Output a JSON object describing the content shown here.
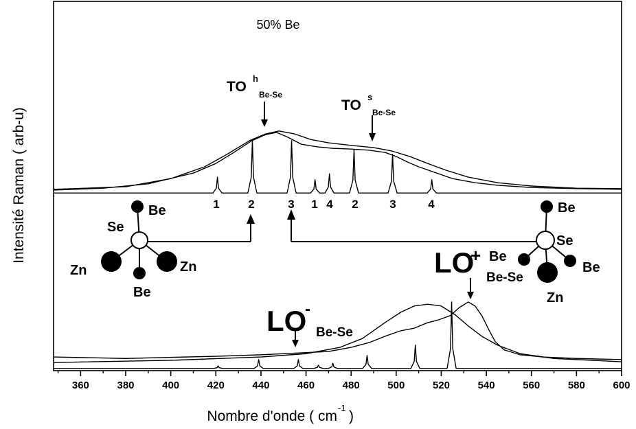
{
  "chart_data": {
    "type": "line",
    "title": "50% Be",
    "x_label": {
      "text": "Nombre d'onde ( cm",
      "sup": "-1",
      "close": ")"
    },
    "y_label": "Intensité Raman ( arb-u)",
    "xlim": [
      348,
      600
    ],
    "xticks": [
      360,
      380,
      400,
      420,
      440,
      460,
      480,
      500,
      520,
      540,
      560,
      580,
      600
    ],
    "xminor_ticks": [
      350,
      370,
      390,
      410,
      430,
      450,
      470,
      490,
      510,
      530,
      550,
      570,
      590
    ],
    "ylim": [
      0,
      100
    ],
    "series": [
      {
        "color": "#000000",
        "x": [
          348,
          370,
          390,
          410,
          420,
          428,
          436,
          442,
          447,
          452,
          458,
          465,
          472,
          480,
          488,
          495,
          500,
          505,
          510,
          518,
          525,
          535,
          545,
          560,
          580,
          600
        ],
        "values": [
          48.9,
          49.4,
          50.6,
          53.5,
          56.1,
          59.1,
          62.3,
          63.9,
          64.5,
          63.2,
          61.3,
          60.6,
          60.2,
          60.0,
          59.7,
          59.1,
          58.0,
          56.5,
          55.2,
          53.5,
          52.0,
          50.9,
          50.2,
          49.6,
          49.3,
          49.1
        ]
      },
      {
        "color": "#000000",
        "x": [
          348,
          380,
          400,
          415,
          425,
          435,
          442,
          448,
          455,
          462,
          470,
          480,
          490,
          498,
          506,
          514,
          522,
          532,
          545,
          560,
          580,
          600
        ],
        "values": [
          49.1,
          49.8,
          52.0,
          55.2,
          58.6,
          62.3,
          64.1,
          64.9,
          64.1,
          62.6,
          61.7,
          61.0,
          60.4,
          59.5,
          58.0,
          56.1,
          54.3,
          52.4,
          50.9,
          50.0,
          49.4,
          49.3
        ]
      },
      {
        "color": "#000000",
        "x": [
          348,
          418.7,
          420.2,
          420.7,
          421.2,
          422.7,
          434.2,
          435.7,
          436.2,
          436.7,
          438.2,
          451.6,
          453.1,
          453.6,
          454.1,
          455.6,
          462,
          463.5,
          464,
          464.5,
          466,
          468.4,
          469.9,
          470.4,
          470.9,
          472.4,
          479.3,
          480.8,
          481.3,
          481.8,
          483.3,
          496.4,
          497.9,
          498.4,
          498.9,
          500.4,
          513.8,
          515.3,
          515.8,
          516.3,
          517.8,
          600
        ],
        "values": [
          48.1,
          48.1,
          49.4,
          52.4,
          49.4,
          48.1,
          48.1,
          52.4,
          62.3,
          52.4,
          48.1,
          48.1,
          52.4,
          62.3,
          52.4,
          48.1,
          48.1,
          49.2,
          51.7,
          49.2,
          48.1,
          48.1,
          49.7,
          53.3,
          49.7,
          48.1,
          48.1,
          51.6,
          59.9,
          51.6,
          48.1,
          48.1,
          51.3,
          58.6,
          51.3,
          48.1,
          48.1,
          49.2,
          51.7,
          49.2,
          48.1,
          48.1
        ]
      },
      {
        "color": "#000000",
        "x": [
          348,
          380,
          420,
          440,
          457,
          470,
          480,
          488,
          495,
          502,
          508,
          514,
          519,
          524,
          528,
          532,
          535,
          538,
          541,
          544,
          548,
          555,
          565,
          580,
          600
        ],
        "values": [
          3.7,
          3.3,
          3.9,
          4.3,
          4.8,
          5.2,
          6.3,
          7.6,
          9.3,
          10.8,
          11.5,
          13.0,
          13.8,
          14.9,
          17.1,
          18.6,
          17.5,
          14.9,
          11.2,
          7.8,
          5.6,
          4.3,
          3.7,
          3.3,
          3.0
        ]
      },
      {
        "color": "#000000",
        "x": [
          348,
          400,
          440,
          460,
          475,
          485,
          495,
          502,
          508,
          514,
          520,
          526,
          532,
          538,
          545,
          555,
          570,
          600
        ],
        "values": [
          2.2,
          2.8,
          3.7,
          4.6,
          6.3,
          8.7,
          13.0,
          15.8,
          17.5,
          18.0,
          17.5,
          15.2,
          12.1,
          9.3,
          6.9,
          4.6,
          3.3,
          2.4
        ]
      },
      {
        "color": "#000000",
        "x": [
          348,
          419,
          420.5,
          421,
          421.5,
          423,
          437,
          438.5,
          439,
          439.5,
          441,
          454.6,
          456.1,
          456.6,
          457.1,
          458.6,
          463.5,
          465,
          465.5,
          466,
          467.5,
          469.9,
          471.4,
          471.9,
          472.4,
          473.9,
          485.1,
          486.6,
          487.1,
          487.6,
          489.1,
          506.5,
          508,
          508.5,
          509,
          510.5,
          522.6,
          524.1,
          524.6,
          525.1,
          526.6,
          600
        ],
        "values": [
          0.6,
          0.6,
          0.8,
          1.3,
          0.8,
          0.6,
          0.6,
          1.3,
          3.0,
          1.3,
          0.6,
          0.6,
          1.3,
          3.0,
          1.3,
          0.6,
          0.6,
          0.9,
          1.5,
          0.9,
          0.6,
          0.6,
          1.0,
          2.0,
          1.0,
          0.6,
          0.6,
          1.7,
          4.1,
          1.7,
          0.6,
          0.6,
          2.5,
          6.9,
          2.5,
          0.6,
          0.6,
          6.0,
          18.6,
          6.0,
          0.6,
          0.6
        ]
      }
    ],
    "annotations": {
      "to_h": {
        "main": "TO",
        "sup": "h",
        "sub": "Be-Se"
      },
      "to_s": {
        "main": "TO",
        "sup": "s",
        "sub": "Be-Se"
      },
      "lo_minus": {
        "main": "LO",
        "sup": "-",
        "sub": "Be-Se"
      },
      "lo_plus": {
        "main": "LO",
        "sup": "+",
        "sub": "Be-Se"
      }
    },
    "peak_labels": [
      "1",
      "2",
      "3",
      "1",
      "4",
      "2",
      "3",
      "4"
    ],
    "left_bond": {
      "top": "Be",
      "center": "Se",
      "left": "Zn",
      "right": "Zn",
      "bottom": "Be"
    },
    "right_bond": {
      "top": "Be",
      "center": "Se",
      "left": "Be",
      "right": "Be",
      "bottom": "Zn"
    }
  }
}
